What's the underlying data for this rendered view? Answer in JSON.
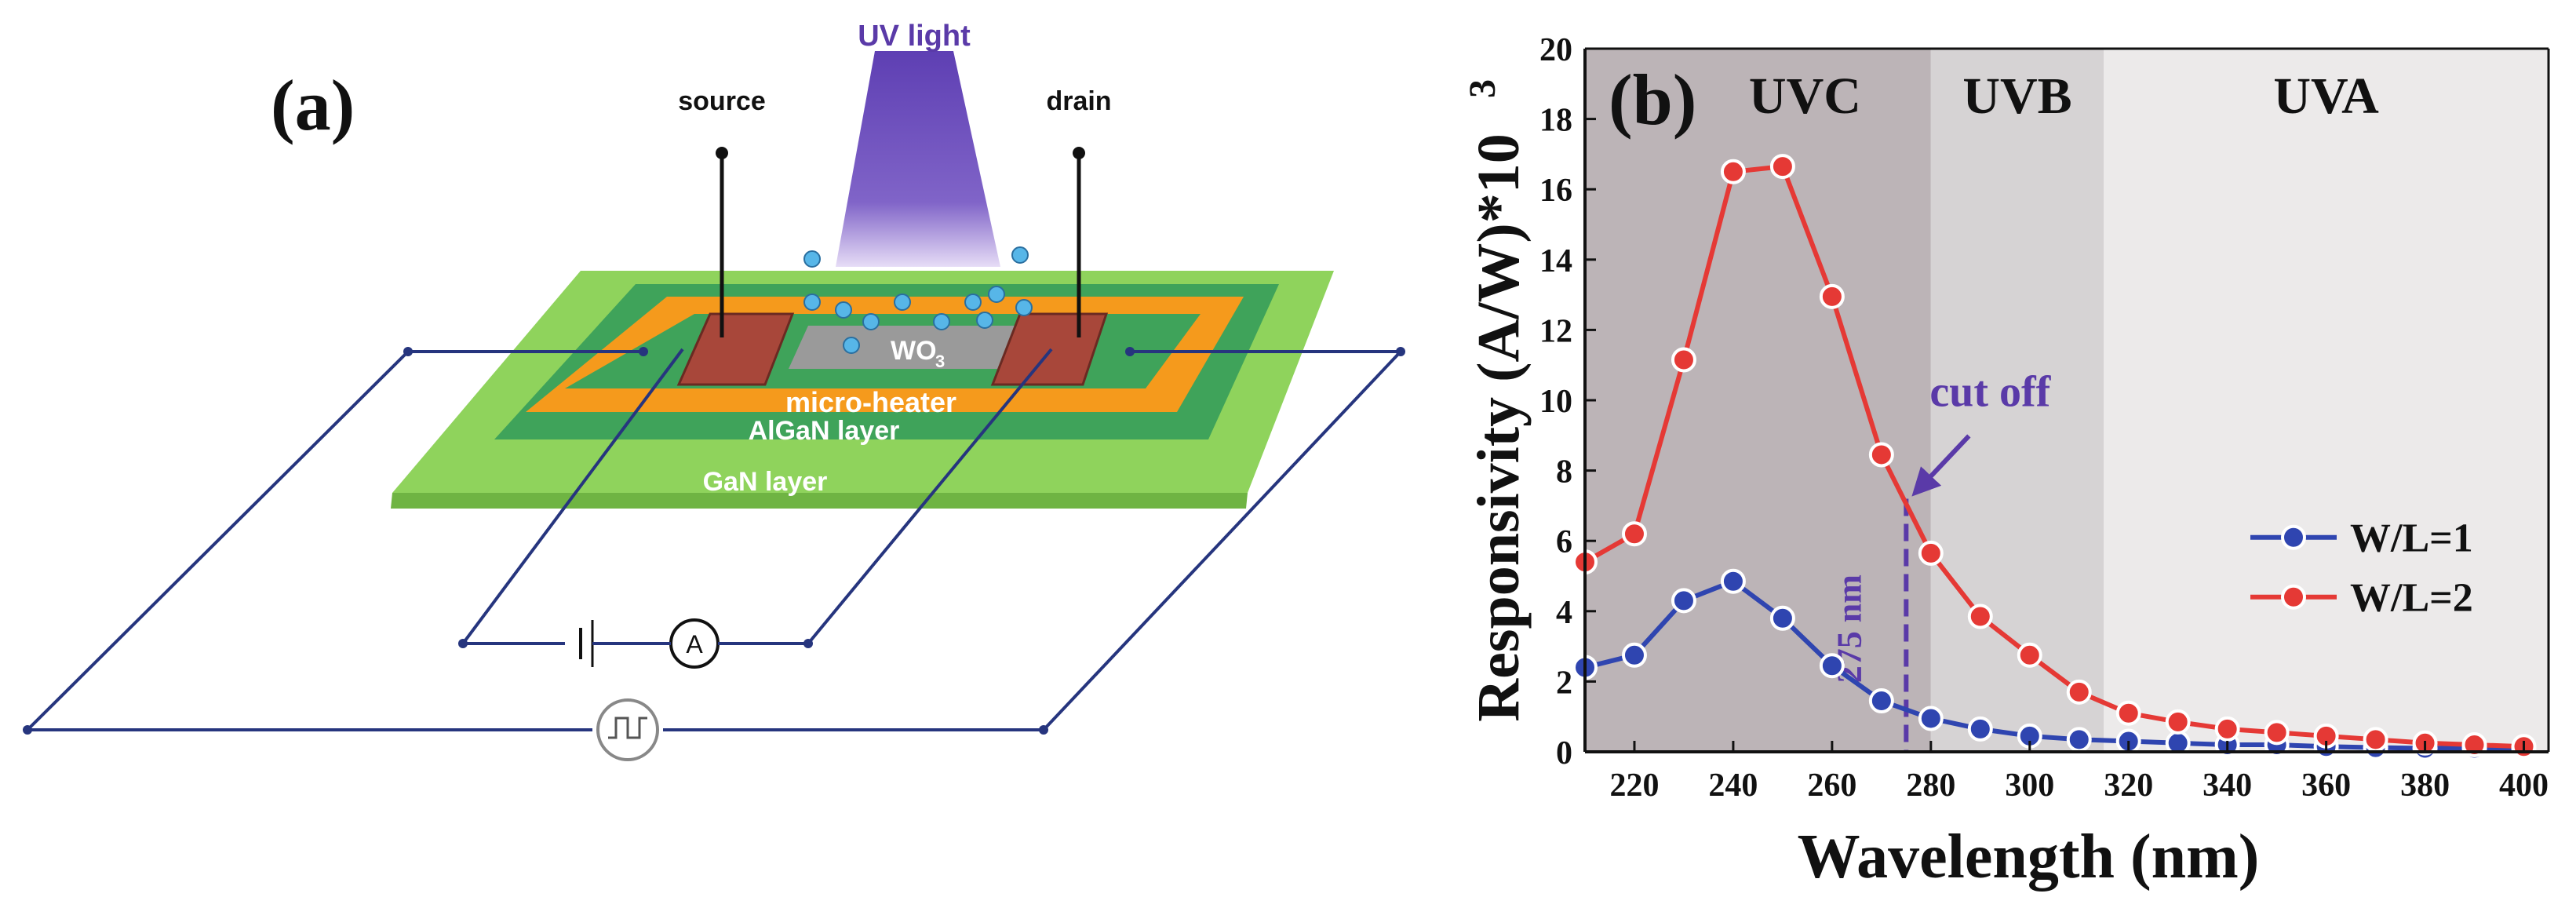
{
  "panel_a": {
    "label": "(a)",
    "uv_light": "UV light",
    "source": "source",
    "drain": "drain",
    "wo3_main": "WO",
    "wo3_sub": "3",
    "micro_heater": "micro-heater",
    "algan": "AlGaN layer",
    "gan": "GaN layer",
    "ammeter": "A",
    "colors": {
      "uv": "#5a3aa8",
      "gan": "#8fd35c",
      "algan": "#3fa35a",
      "heater": "#f59a1c",
      "electrode": "#a8473a",
      "wire": "#26357e"
    }
  },
  "chart_data": {
    "type": "line",
    "panel_label": "(b)",
    "title": "",
    "xlabel": "Wavelength (nm)",
    "ylabel_main": "Responsivity (A/W)*10",
    "ylabel_exp": "3",
    "xlim": [
      210,
      405
    ],
    "ylim": [
      0,
      20
    ],
    "xticks": [
      220,
      240,
      260,
      280,
      300,
      320,
      340,
      360,
      380,
      400
    ],
    "yticks": [
      0,
      2,
      4,
      6,
      8,
      10,
      12,
      14,
      16,
      18,
      20
    ],
    "regions": [
      {
        "label": "UVC",
        "from": 210,
        "to": 280,
        "color": "#bcb4b7"
      },
      {
        "label": "UVB",
        "from": 280,
        "to": 315,
        "color": "#d6d3d4"
      },
      {
        "label": "UVA",
        "from": 315,
        "to": 405,
        "color": "#eceaea"
      }
    ],
    "x": [
      210,
      220,
      230,
      240,
      250,
      260,
      270,
      280,
      290,
      300,
      310,
      320,
      330,
      340,
      350,
      360,
      370,
      380,
      390,
      400
    ],
    "series": [
      {
        "name": "W/L=1",
        "color": "#2f45b0",
        "values": [
          2.4,
          2.75,
          4.3,
          4.85,
          3.8,
          2.45,
          1.45,
          0.95,
          0.65,
          0.45,
          0.35,
          0.3,
          0.25,
          0.2,
          0.2,
          0.15,
          0.12,
          0.1,
          0.1,
          0.1
        ]
      },
      {
        "name": "W/L=2",
        "color": "#e53935",
        "values": [
          5.4,
          6.2,
          11.15,
          16.5,
          16.65,
          12.95,
          8.45,
          5.65,
          3.85,
          2.75,
          1.7,
          1.1,
          0.85,
          0.65,
          0.55,
          0.45,
          0.35,
          0.25,
          0.2,
          0.15
        ]
      }
    ],
    "annotations": {
      "cutoff_label": "cut off",
      "cutoff_value": "275 nm",
      "cutoff_x": 275,
      "arrow_to_y": 7.2
    },
    "legend_position": "center-right"
  }
}
